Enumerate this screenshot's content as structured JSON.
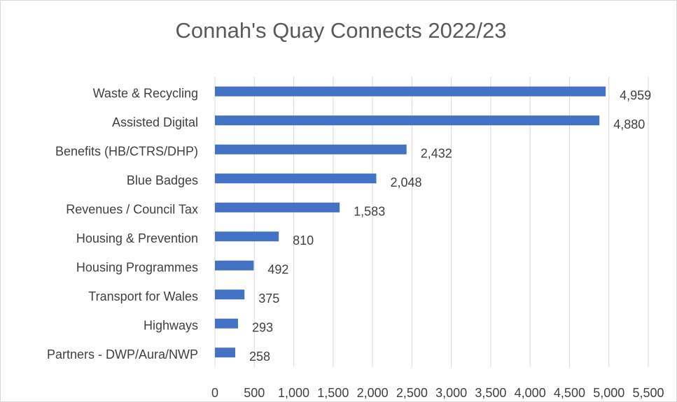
{
  "chart_data": {
    "type": "hbar",
    "title": "Connah's Quay Connects 2022/23",
    "categories": [
      "Waste & Recycling",
      "Assisted Digital",
      "Benefits (HB/CTRS/DHP)",
      "Blue Badges",
      "Revenues / Council Tax",
      "Housing & Prevention",
      "Housing Programmes",
      "Transport for Wales",
      "Highways",
      "Partners - DWP/Aura/NWP"
    ],
    "values": [
      4959,
      4880,
      2432,
      2048,
      1583,
      810,
      492,
      375,
      293,
      258
    ],
    "value_labels": [
      "4,959",
      "4,880",
      "2,432",
      "2,048",
      "1,583",
      "810",
      "492",
      "375",
      "293",
      "258"
    ],
    "color": "#4472c4",
    "xlim": [
      0,
      5500
    ],
    "xticks": [
      0,
      500,
      {
        "value": 1000,
        "label": "1,000"
      },
      {
        "value": 1500,
        "label": "1,500"
      },
      {
        "value": 2000,
        "label": "2,000"
      },
      {
        "value": 2500,
        "label": "2,500"
      },
      {
        "value": 3000,
        "label": "3,000"
      },
      {
        "value": 3500,
        "label": "3,500"
      },
      {
        "value": 4000,
        "label": "4,000"
      },
      {
        "value": 4500,
        "label": "4,500"
      },
      {
        "value": 5000,
        "label": "5,000"
      },
      {
        "value": 5500,
        "label": "5,500"
      }
    ],
    "grid": true
  }
}
